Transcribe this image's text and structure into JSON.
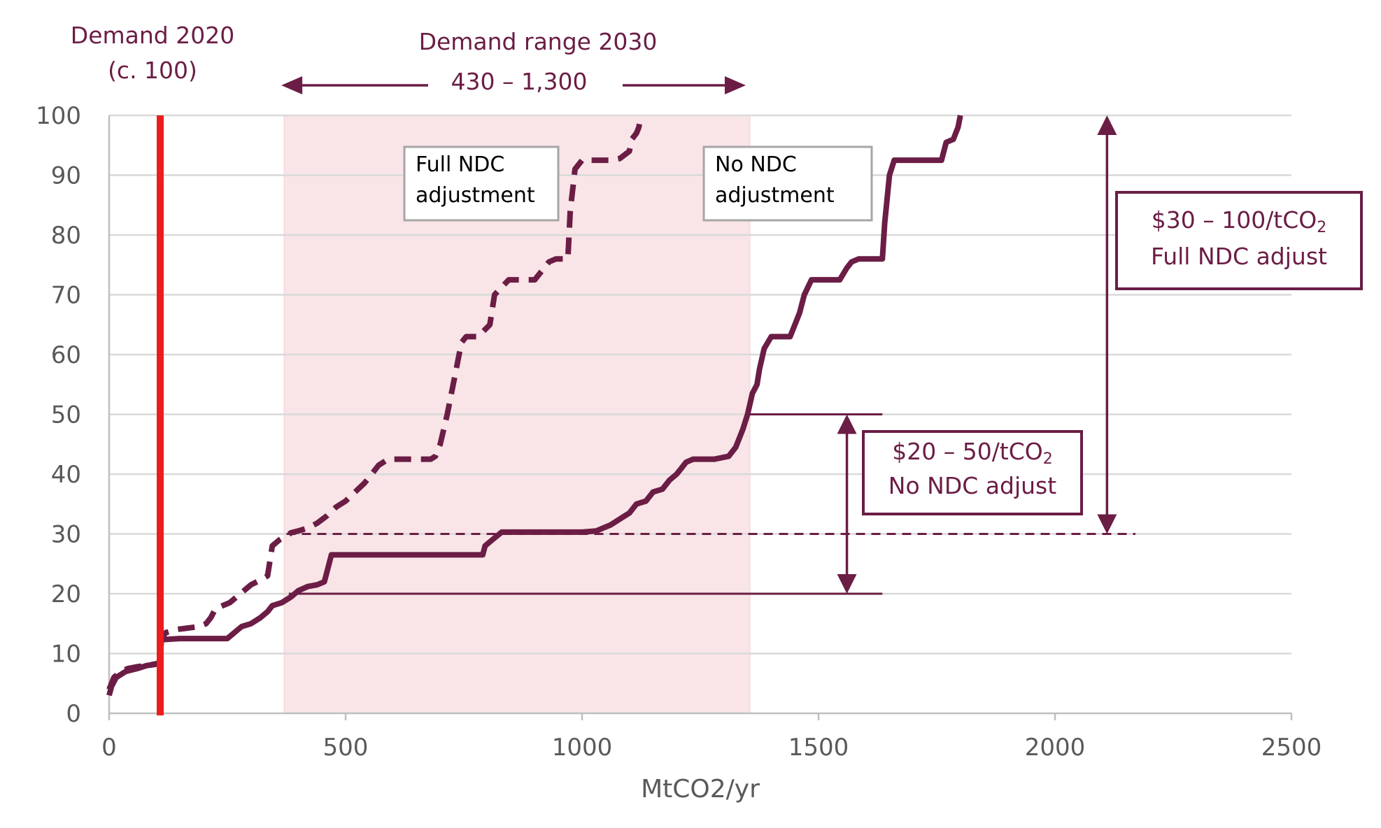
{
  "chart_data": {
    "type": "line",
    "xlabel": "MtCO2/yr",
    "ylabel": "",
    "xlim": [
      0,
      2500
    ],
    "ylim": [
      0,
      100
    ],
    "x_ticks": [
      "0",
      "500",
      "1000",
      "1500",
      "2000",
      "2500"
    ],
    "y_ticks": [
      "0",
      "10",
      "20",
      "30",
      "40",
      "50",
      "60",
      "70",
      "80",
      "90",
      "100"
    ],
    "grid": "horizontal",
    "colors": {
      "series": "#6b1d45",
      "demand_2020": "#ee1c1c",
      "shade": "#f9e5e7",
      "grid": "#d9d9d9",
      "box_border": "#a6a6a6"
    },
    "demand_2020": {
      "line1": "Demand 2020",
      "line2": "(c. 100)",
      "x": 108
    },
    "demand_range_2030": {
      "line1": "Demand range 2030",
      "line2": "430 – 1,300",
      "x_start": 370,
      "x_end": 1355
    },
    "series": [
      {
        "name": "Full NDC adjustment",
        "style": "dashed",
        "points": [
          [
            0,
            4
          ],
          [
            10,
            6
          ],
          [
            25,
            7
          ],
          [
            40,
            7.5
          ],
          [
            60,
            7.8
          ],
          [
            80,
            8
          ],
          [
            100,
            8.3
          ],
          [
            108,
            8.5
          ],
          [
            110,
            12
          ],
          [
            115,
            13
          ],
          [
            120,
            13.5
          ],
          [
            140,
            14
          ],
          [
            160,
            14.2
          ],
          [
            190,
            14.5
          ],
          [
            205,
            15
          ],
          [
            215,
            16
          ],
          [
            225,
            17.5
          ],
          [
            240,
            18
          ],
          [
            255,
            18.5
          ],
          [
            270,
            19.5
          ],
          [
            285,
            20.5
          ],
          [
            300,
            21.5
          ],
          [
            325,
            22.5
          ],
          [
            335,
            23
          ],
          [
            345,
            28
          ],
          [
            360,
            29
          ],
          [
            370,
            29.5
          ],
          [
            385,
            30.2
          ],
          [
            400,
            30.5
          ],
          [
            420,
            31
          ],
          [
            440,
            31.8
          ],
          [
            460,
            33
          ],
          [
            480,
            34.5
          ],
          [
            500,
            35.5
          ],
          [
            520,
            37
          ],
          [
            540,
            38.5
          ],
          [
            560,
            40.5
          ],
          [
            570,
            41.5
          ],
          [
            590,
            42.5
          ],
          [
            630,
            42.5
          ],
          [
            680,
            42.5
          ],
          [
            690,
            43
          ],
          [
            700,
            45
          ],
          [
            715,
            50
          ],
          [
            730,
            56
          ],
          [
            745,
            62
          ],
          [
            755,
            63
          ],
          [
            780,
            63
          ],
          [
            805,
            65
          ],
          [
            815,
            70
          ],
          [
            845,
            72.5
          ],
          [
            875,
            72.5
          ],
          [
            900,
            72.5
          ],
          [
            915,
            74
          ],
          [
            930,
            75.5
          ],
          [
            945,
            76
          ],
          [
            970,
            76
          ],
          [
            975,
            84
          ],
          [
            985,
            91
          ],
          [
            1000,
            92.5
          ],
          [
            1020,
            92.5
          ],
          [
            1050,
            92.5
          ],
          [
            1060,
            92.5
          ],
          [
            1080,
            92.8
          ],
          [
            1100,
            94
          ],
          [
            1105,
            96
          ],
          [
            1115,
            97
          ],
          [
            1120,
            98
          ],
          [
            1125,
            100
          ]
        ]
      },
      {
        "name": "No NDC adjustment",
        "style": "solid",
        "points": [
          [
            0,
            3
          ],
          [
            5,
            4.5
          ],
          [
            15,
            6
          ],
          [
            35,
            7
          ],
          [
            60,
            7.5
          ],
          [
            80,
            8
          ],
          [
            108,
            8.3
          ],
          [
            110,
            12.3
          ],
          [
            150,
            12.5
          ],
          [
            250,
            12.5
          ],
          [
            265,
            13.5
          ],
          [
            280,
            14.5
          ],
          [
            300,
            15
          ],
          [
            310,
            15.5
          ],
          [
            320,
            16
          ],
          [
            335,
            17
          ],
          [
            345,
            18
          ],
          [
            365,
            18.5
          ],
          [
            385,
            19.5
          ],
          [
            400,
            20.5
          ],
          [
            420,
            21.2
          ],
          [
            440,
            21.5
          ],
          [
            455,
            22
          ],
          [
            460,
            23.5
          ],
          [
            470,
            26.5
          ],
          [
            500,
            26.5
          ],
          [
            600,
            26.5
          ],
          [
            700,
            26.5
          ],
          [
            790,
            26.5
          ],
          [
            795,
            28
          ],
          [
            810,
            29
          ],
          [
            830,
            30.3
          ],
          [
            900,
            30.3
          ],
          [
            1000,
            30.3
          ],
          [
            1030,
            30.5
          ],
          [
            1060,
            31.5
          ],
          [
            1080,
            32.5
          ],
          [
            1100,
            33.5
          ],
          [
            1115,
            35
          ],
          [
            1135,
            35.5
          ],
          [
            1150,
            37
          ],
          [
            1170,
            37.5
          ],
          [
            1185,
            39
          ],
          [
            1200,
            40
          ],
          [
            1210,
            41
          ],
          [
            1220,
            42
          ],
          [
            1235,
            42.5
          ],
          [
            1280,
            42.5
          ],
          [
            1310,
            43
          ],
          [
            1325,
            44.5
          ],
          [
            1340,
            47.5
          ],
          [
            1350,
            50
          ],
          [
            1360,
            53.5
          ],
          [
            1370,
            55
          ],
          [
            1375,
            57.5
          ],
          [
            1385,
            61
          ],
          [
            1400,
            63
          ],
          [
            1420,
            63
          ],
          [
            1440,
            63
          ],
          [
            1450,
            65
          ],
          [
            1460,
            67
          ],
          [
            1470,
            70
          ],
          [
            1485,
            72.5
          ],
          [
            1520,
            72.5
          ],
          [
            1545,
            72.5
          ],
          [
            1560,
            74.5
          ],
          [
            1570,
            75.5
          ],
          [
            1585,
            76
          ],
          [
            1600,
            76
          ],
          [
            1625,
            76
          ],
          [
            1635,
            76
          ],
          [
            1640,
            82
          ],
          [
            1650,
            90
          ],
          [
            1660,
            92.5
          ],
          [
            1700,
            92.5
          ],
          [
            1760,
            92.5
          ],
          [
            1770,
            95.5
          ],
          [
            1785,
            96
          ],
          [
            1795,
            98
          ],
          [
            1800,
            100
          ]
        ]
      }
    ],
    "series_labels": [
      {
        "line1": "Full NDC",
        "line2": "adjustment"
      },
      {
        "line1": "No NDC",
        "line2": "adjustment"
      }
    ],
    "price_ranges": [
      {
        "line1_prefix": "$20 – 50/tCO",
        "line1_subscript": "2",
        "line2": "No NDC adjust",
        "y_low": 20,
        "y_high": 50
      },
      {
        "line1_prefix": "$30 – 100/tCO",
        "line1_subscript": "2",
        "line2": "Full NDC adjust",
        "y_low": 30,
        "y_high": 100
      }
    ]
  }
}
